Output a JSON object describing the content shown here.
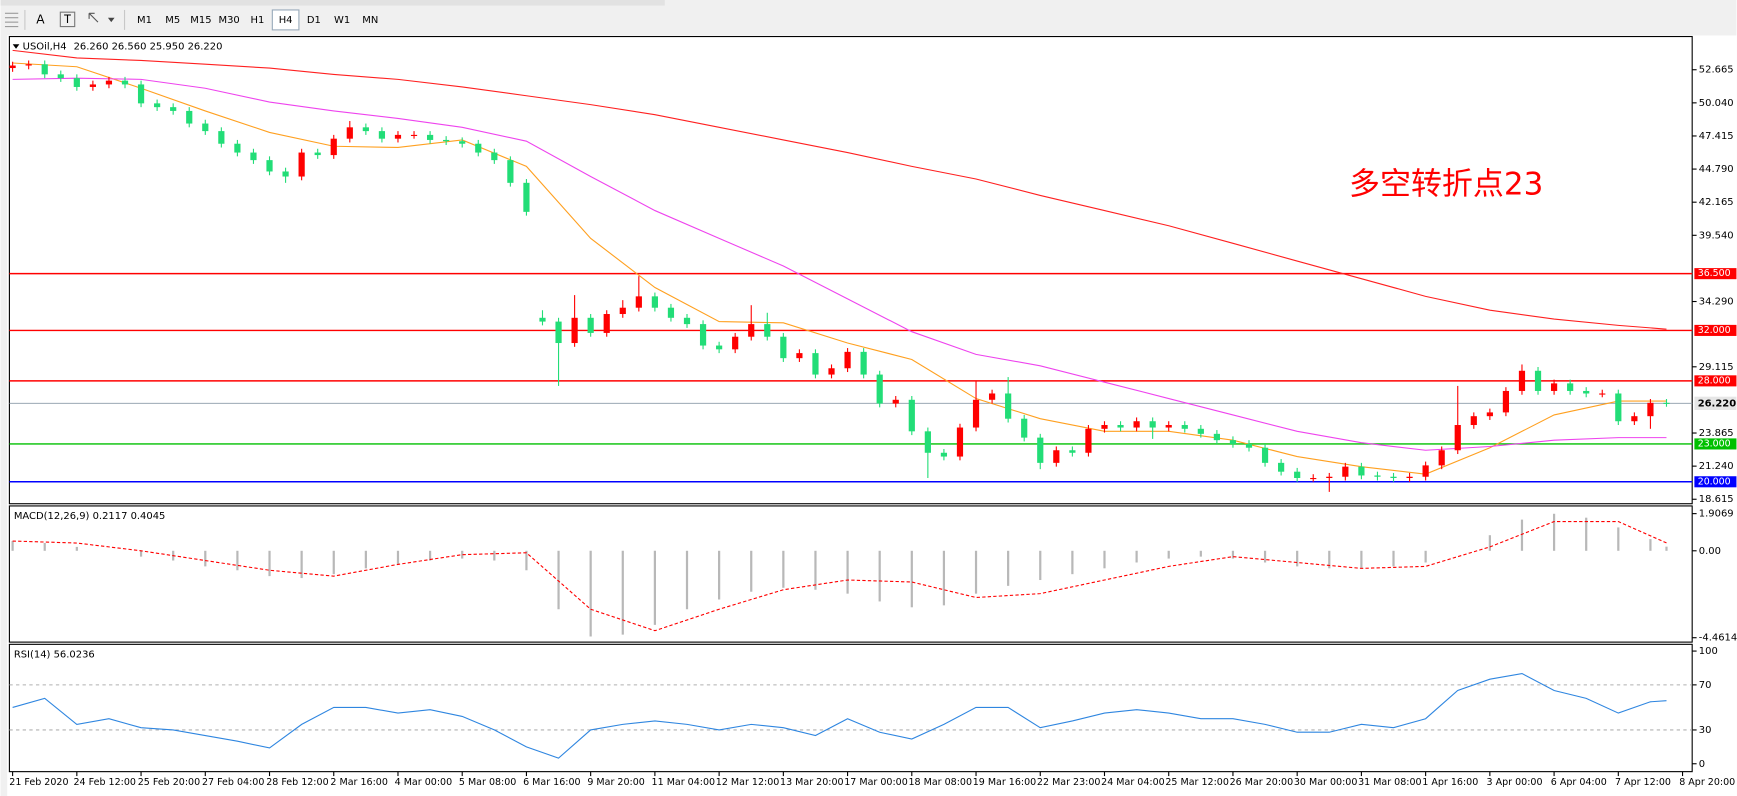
{
  "toolbar": {
    "tools": [
      "A",
      "T"
    ],
    "timeframes": [
      "M1",
      "M5",
      "M15",
      "M30",
      "H1",
      "H4",
      "D1",
      "W1",
      "MN"
    ],
    "active": "H4"
  },
  "chart_data": [
    {
      "type": "candlestick",
      "title": "USOil,H4",
      "ohlc_label": "26.260 26.560 25.950 26.220",
      "annotation": "多空转折点23",
      "annotation_color": "#ff0000",
      "up_color": "#ff0000",
      "down_color": "#22dd77",
      "xlim": [
        -0.2,
        104.6
      ],
      "ylim": [
        18.26,
        55.21
      ],
      "yticks": [
        52.665,
        {
          "value": 50.04,
          "label": "50.040"
        },
        47.415,
        {
          "value": 44.79,
          "label": "44.790"
        },
        42.165,
        {
          "value": 39.54,
          "label": "39.540"
        },
        {
          "value": 34.29,
          "label": "34.290"
        },
        29.115,
        23.865,
        {
          "value": 21.24,
          "label": "21.240"
        },
        18.615
      ],
      "open": [
        52.8,
        53,
        53.1,
        52.3,
        52,
        51.3,
        51.5,
        51.8,
        51.5,
        50,
        49.7,
        49.4,
        48.4,
        47.8,
        46.8,
        46.1,
        45.5,
        44.6,
        44.2,
        46.1,
        45.9,
        47.2,
        48.1,
        47.8,
        47.2,
        47.5,
        47.5,
        47.1,
        47,
        46.8,
        46.1,
        45.5,
        43.7,
        33,
        32.7,
        31,
        33,
        31.8,
        33.3,
        33.8,
        34.7,
        33.8,
        33,
        32.5,
        30.8,
        30.5,
        31.5,
        32.5,
        31.5,
        29.8,
        30.2,
        28.5,
        29,
        30.3,
        28.5,
        26.2,
        26.5,
        24,
        22.3,
        22,
        24.3,
        26.5,
        27,
        25,
        23.5,
        21.5,
        22.5,
        22.3,
        24.2,
        24.5,
        24.3,
        24.8,
        24.3,
        24.5,
        24.2,
        23.8,
        23.3,
        23,
        22.7,
        21.5,
        20.8,
        20.3,
        20.3,
        20.4,
        21.2,
        20.5,
        20.4,
        20.3,
        20.4,
        21.3,
        22.5,
        24.5,
        25.2,
        25.5,
        27.2,
        28.8,
        27.2,
        27.8,
        27.2,
        27,
        27,
        24.8,
        25.2,
        26.26
      ],
      "high": [
        53.3,
        53.4,
        53.4,
        52.6,
        52.3,
        51.8,
        52.1,
        52.1,
        51.8,
        50.3,
        50,
        49.7,
        48.7,
        48.1,
        47.1,
        46.4,
        45.8,
        44.9,
        46.4,
        46.4,
        47.5,
        48.6,
        48.4,
        48.1,
        47.8,
        47.8,
        47.8,
        47.4,
        47.3,
        47.1,
        46.4,
        45.8,
        44,
        33.6,
        33,
        34.8,
        33.3,
        33.6,
        34.4,
        36.3,
        35,
        34.1,
        33.3,
        32.8,
        31.1,
        31.8,
        34,
        33.4,
        31.8,
        30.5,
        30.5,
        29.3,
        30.6,
        30.6,
        28.8,
        26.8,
        26.8,
        24.3,
        22.6,
        24.6,
        28,
        27.3,
        28.3,
        25.3,
        23.8,
        22.8,
        22.8,
        24.5,
        24.8,
        24.8,
        25.1,
        25.1,
        24.8,
        24.8,
        24.5,
        24.1,
        23.6,
        23.3,
        23,
        21.8,
        21.1,
        20.6,
        20.7,
        21.5,
        21.5,
        20.8,
        20.7,
        20.7,
        21.6,
        22.8,
        27.6,
        25.5,
        25.8,
        27.5,
        29.3,
        29.1,
        28.1,
        28.1,
        27.5,
        27.3,
        27.3,
        25.5,
        26.56,
        26.56
      ],
      "low": [
        52.5,
        52.7,
        52,
        51.7,
        51,
        51,
        51.2,
        51.2,
        49.7,
        49.4,
        49.1,
        48.1,
        47.5,
        46.5,
        45.8,
        45.2,
        44.3,
        43.7,
        43.9,
        45.6,
        45.6,
        46.9,
        47.5,
        46.9,
        46.9,
        47.2,
        46.8,
        46.7,
        46.5,
        45.8,
        45.2,
        43.4,
        41.1,
        32.4,
        27.6,
        30.7,
        31.5,
        31.5,
        33,
        33.5,
        33.5,
        32.7,
        32.2,
        30.5,
        30.2,
        30.2,
        31.2,
        31.2,
        29.5,
        29.5,
        28.2,
        28.2,
        28.7,
        28.2,
        25.9,
        25.9,
        23.7,
        20.3,
        21.7,
        21.7,
        24,
        26.2,
        24.7,
        23.2,
        21,
        21.2,
        22,
        22,
        23.9,
        24,
        24,
        23.4,
        24,
        23.9,
        23.5,
        23,
        22.7,
        22.4,
        21.2,
        20.5,
        20,
        20,
        19.2,
        20.1,
        20.2,
        20.1,
        20,
        20,
        20.1,
        21,
        22.2,
        24.2,
        24.9,
        25.2,
        26.9,
        26.9,
        26.9,
        26.9,
        26.7,
        26.7,
        24.5,
        24.5,
        24.2,
        25.95
      ],
      "close": [
        53,
        53.1,
        52.3,
        52,
        51.3,
        51.5,
        51.8,
        51.5,
        50,
        49.7,
        49.4,
        48.4,
        47.8,
        46.8,
        46.1,
        45.5,
        44.6,
        44.2,
        46.1,
        45.9,
        47.2,
        48.1,
        47.8,
        47.2,
        47.5,
        47.5,
        47.1,
        47,
        46.8,
        46.1,
        45.5,
        43.7,
        41.4,
        32.7,
        31,
        33,
        31.8,
        33.3,
        33.8,
        34.7,
        33.8,
        33,
        32.5,
        30.8,
        30.5,
        31.5,
        32.5,
        31.5,
        29.8,
        30.2,
        28.5,
        29,
        30.3,
        28.5,
        26.2,
        26.5,
        24,
        22.3,
        22,
        24.3,
        26.5,
        27,
        25,
        23.5,
        21.5,
        22.5,
        22.3,
        24.2,
        24.5,
        24.3,
        24.8,
        24.3,
        24.5,
        24.2,
        23.8,
        23.3,
        23,
        22.7,
        21.5,
        20.8,
        20.3,
        20.3,
        20.4,
        21.2,
        20.5,
        20.4,
        20.3,
        20.4,
        21.3,
        22.5,
        24.5,
        25.2,
        25.5,
        27.2,
        28.8,
        27.2,
        27.8,
        27.2,
        27,
        27,
        24.8,
        25.2,
        26.26,
        26.22
      ],
      "series": [
        {
          "color": "#ffa020",
          "x": [
            0,
            4,
            8,
            12,
            16,
            20,
            24,
            28,
            32,
            36,
            40,
            44,
            48,
            52,
            56,
            60,
            64,
            68,
            72,
            76,
            80,
            84,
            88,
            92,
            96,
            100,
            103
          ],
          "values": [
            53.2,
            52.9,
            51.2,
            49.4,
            47.7,
            46.6,
            46.5,
            47.1,
            45,
            39.3,
            35.4,
            32.7,
            32.6,
            31,
            29.7,
            26.6,
            25,
            24,
            24,
            23.3,
            22,
            21.2,
            20.6,
            22.7,
            25.3,
            26.4,
            26.4
          ]
        },
        {
          "color": "#ee44ee",
          "x": [
            0,
            4,
            8,
            12,
            16,
            20,
            24,
            28,
            32,
            36,
            40,
            44,
            48,
            52,
            56,
            60,
            64,
            68,
            72,
            76,
            80,
            84,
            88,
            92,
            96,
            100,
            103
          ],
          "values": [
            51.9,
            52,
            51.9,
            51.2,
            50.1,
            49.4,
            48.8,
            48.1,
            47,
            44.2,
            41.5,
            39.3,
            37.1,
            34.5,
            31.9,
            30.1,
            29.2,
            27.9,
            26.6,
            25.3,
            24,
            23.1,
            22.5,
            22.8,
            23.3,
            23.5,
            23.5
          ]
        },
        {
          "color": "#ff2020",
          "x": [
            0,
            4,
            8,
            12,
            16,
            20,
            24,
            28,
            32,
            36,
            40,
            44,
            48,
            52,
            56,
            60,
            64,
            68,
            72,
            76,
            80,
            84,
            88,
            92,
            96,
            100,
            103
          ],
          "values": [
            54.2,
            53.6,
            53.4,
            53.1,
            52.8,
            52.3,
            51.9,
            51.3,
            50.6,
            49.9,
            49.1,
            48.1,
            47.1,
            46.1,
            45,
            44,
            42.7,
            41.5,
            40.3,
            38.9,
            37.5,
            36.1,
            34.7,
            33.6,
            32.9,
            32.4,
            32.1
          ]
        }
      ],
      "levels": [
        {
          "value": 36.5,
          "label": "36.500",
          "color": "#ff0000"
        },
        {
          "value": 32,
          "label": "32.000",
          "color": "#ff0000"
        },
        {
          "value": 28,
          "label": "28.000",
          "color": "#ff0000"
        },
        {
          "value": 23,
          "label": "23.000",
          "color": "#00c000"
        },
        {
          "value": 20,
          "label": "20.000",
          "color": "#0000ff"
        }
      ],
      "current": {
        "value": 26.22,
        "label": "26.220",
        "color": "#8c9ba8"
      }
    },
    {
      "type": "macd",
      "title": "MACD(12,26,9) 0.2117 0.4045",
      "xlim": [
        -0.2,
        104.6
      ],
      "ylim": [
        -4.687,
        2.245
      ],
      "yticks": [
        1.9069,
        {
          "value": 0,
          "label": "0.00"
        },
        -4.4614
      ],
      "histogram": {
        "color": "#b8b8b8",
        "x": [
          0,
          2,
          4,
          6,
          8,
          10,
          12,
          14,
          16,
          18,
          20,
          22,
          24,
          26,
          28,
          30,
          32,
          34,
          36,
          38,
          40,
          42,
          44,
          46,
          48,
          50,
          52,
          54,
          56,
          58,
          60,
          62,
          64,
          66,
          68,
          70,
          72,
          74,
          76,
          78,
          80,
          82,
          84,
          86,
          88,
          90,
          92,
          94,
          96,
          98,
          100,
          102,
          103
        ],
        "values": [
          0.5,
          0.4,
          0.2,
          0,
          -0.3,
          -0.5,
          -0.8,
          -1,
          -1.3,
          -1.4,
          -1.2,
          -0.9,
          -0.7,
          -0.5,
          -0.4,
          -0.5,
          -1,
          -3,
          -4.4,
          -4.3,
          -3.8,
          -3,
          -2.5,
          -2.1,
          -1.9,
          -2,
          -2.2,
          -2.6,
          -2.9,
          -2.8,
          -2.2,
          -1.8,
          -1.5,
          -1.2,
          -0.9,
          -0.6,
          -0.4,
          -0.3,
          -0.4,
          -0.6,
          -0.8,
          -0.9,
          -0.9,
          -0.8,
          -0.6,
          0,
          0.8,
          1.6,
          1.9,
          1.7,
          1.2,
          0.6,
          0.2117
        ]
      },
      "signal": {
        "color": "#ff0000",
        "x": [
          0,
          4,
          8,
          12,
          16,
          20,
          24,
          28,
          32,
          36,
          40,
          44,
          48,
          52,
          56,
          60,
          64,
          68,
          72,
          76,
          80,
          84,
          88,
          92,
          96,
          100,
          103
        ],
        "values": [
          0.5,
          0.4,
          0,
          -0.5,
          -1,
          -1.3,
          -0.7,
          -0.2,
          -0.1,
          -3,
          -4.1,
          -3,
          -2,
          -1.5,
          -1.6,
          -2.4,
          -2.2,
          -1.5,
          -0.8,
          -0.3,
          -0.6,
          -0.9,
          -0.8,
          0.2,
          1.5,
          1.5,
          0.4045
        ]
      }
    },
    {
      "type": "line",
      "title": "RSI(14) 56.0236",
      "xlim": [
        -0.2,
        104.6
      ],
      "ylim": [
        -7,
        105
      ],
      "yticks": [
        100,
        70,
        30,
        0
      ],
      "levels": [
        70,
        30
      ],
      "xticks": [
        {
          "value": 0,
          "label": "21 Feb 2020"
        },
        {
          "value": 4,
          "label": "24 Feb 12:00"
        },
        {
          "value": 8,
          "label": "25 Feb 20:00"
        },
        {
          "value": 12,
          "label": "27 Feb 04:00"
        },
        {
          "value": 16,
          "label": "28 Feb 12:00"
        },
        {
          "value": 20,
          "label": "2 Mar 16:00"
        },
        {
          "value": 24,
          "label": "4 Mar 00:00"
        },
        {
          "value": 28,
          "label": "5 Mar 08:00"
        },
        {
          "value": 32,
          "label": "6 Mar 16:00"
        },
        {
          "value": 36,
          "label": "9 Mar 20:00"
        },
        {
          "value": 40,
          "label": "11 Mar 04:00"
        },
        {
          "value": 44,
          "label": "12 Mar 12:00"
        },
        {
          "value": 48,
          "label": "13 Mar 20:00"
        },
        {
          "value": 52,
          "label": "17 Mar 00:00"
        },
        {
          "value": 56,
          "label": "18 Mar 08:00"
        },
        {
          "value": 60,
          "label": "19 Mar 16:00"
        },
        {
          "value": 64,
          "label": "22 Mar 23:00"
        },
        {
          "value": 68,
          "label": "24 Mar 04:00"
        },
        {
          "value": 72,
          "label": "25 Mar 12:00"
        },
        {
          "value": 76,
          "label": "26 Mar 20:00"
        },
        {
          "value": 80,
          "label": "30 Mar 00:00"
        },
        {
          "value": 84,
          "label": "31 Mar 08:00"
        },
        {
          "value": 88,
          "label": "1 Apr 16:00"
        },
        {
          "value": 92,
          "label": "3 Apr 00:00"
        },
        {
          "value": 96,
          "label": "6 Apr 04:00"
        },
        {
          "value": 100,
          "label": "7 Apr 12:00"
        },
        {
          "value": 104,
          "label": "8 Apr 20:00"
        }
      ],
      "series": [
        {
          "color": "#2f86e0",
          "x": [
            0,
            2,
            4,
            6,
            8,
            10,
            12,
            14,
            16,
            18,
            20,
            22,
            24,
            26,
            28,
            30,
            32,
            34,
            36,
            38,
            40,
            42,
            44,
            46,
            48,
            50,
            52,
            54,
            56,
            58,
            60,
            62,
            64,
            66,
            68,
            70,
            72,
            74,
            76,
            78,
            80,
            82,
            84,
            86,
            88,
            90,
            92,
            94,
            96,
            98,
            100,
            102,
            103
          ],
          "values": [
            50,
            58,
            35,
            40,
            32,
            30,
            25,
            20,
            14,
            35,
            50,
            50,
            45,
            48,
            42,
            30,
            15,
            5,
            30,
            35,
            38,
            35,
            30,
            35,
            32,
            25,
            40,
            28,
            22,
            35,
            50,
            50,
            32,
            38,
            45,
            48,
            45,
            40,
            40,
            35,
            28,
            28,
            35,
            32,
            40,
            65,
            75,
            80,
            65,
            58,
            45,
            55,
            56.0236
          ]
        }
      ]
    }
  ]
}
